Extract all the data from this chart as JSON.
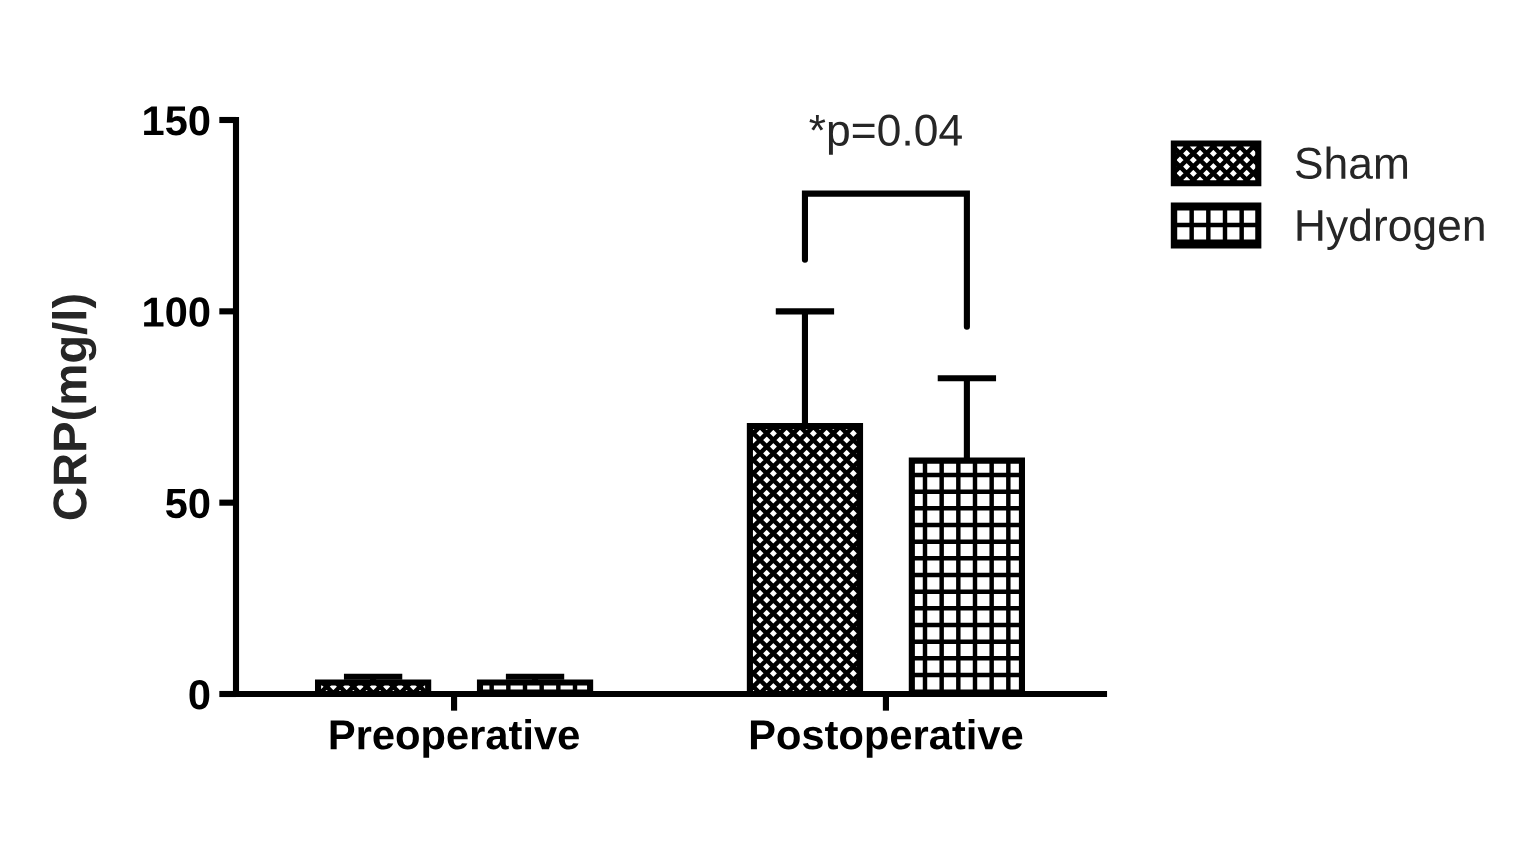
{
  "chart_data": {
    "type": "bar",
    "ylabel": "CRP(mg/l)",
    "categories": [
      "Preoperative",
      "Postoperative"
    ],
    "series": [
      {
        "name": "Sham",
        "color": "#000000",
        "values": [
          3,
          70
        ],
        "errors": [
          1.5,
          30
        ]
      },
      {
        "name": "Hydrogen",
        "color": "#000000",
        "values": [
          3,
          61
        ],
        "errors": [
          1.5,
          21.5
        ]
      }
    ],
    "ylim": [
      0,
      150
    ],
    "yticks": [
      0,
      50,
      100,
      150
    ],
    "grid": false,
    "legend": "top right",
    "annotations": [
      "*p=0.04"
    ]
  }
}
